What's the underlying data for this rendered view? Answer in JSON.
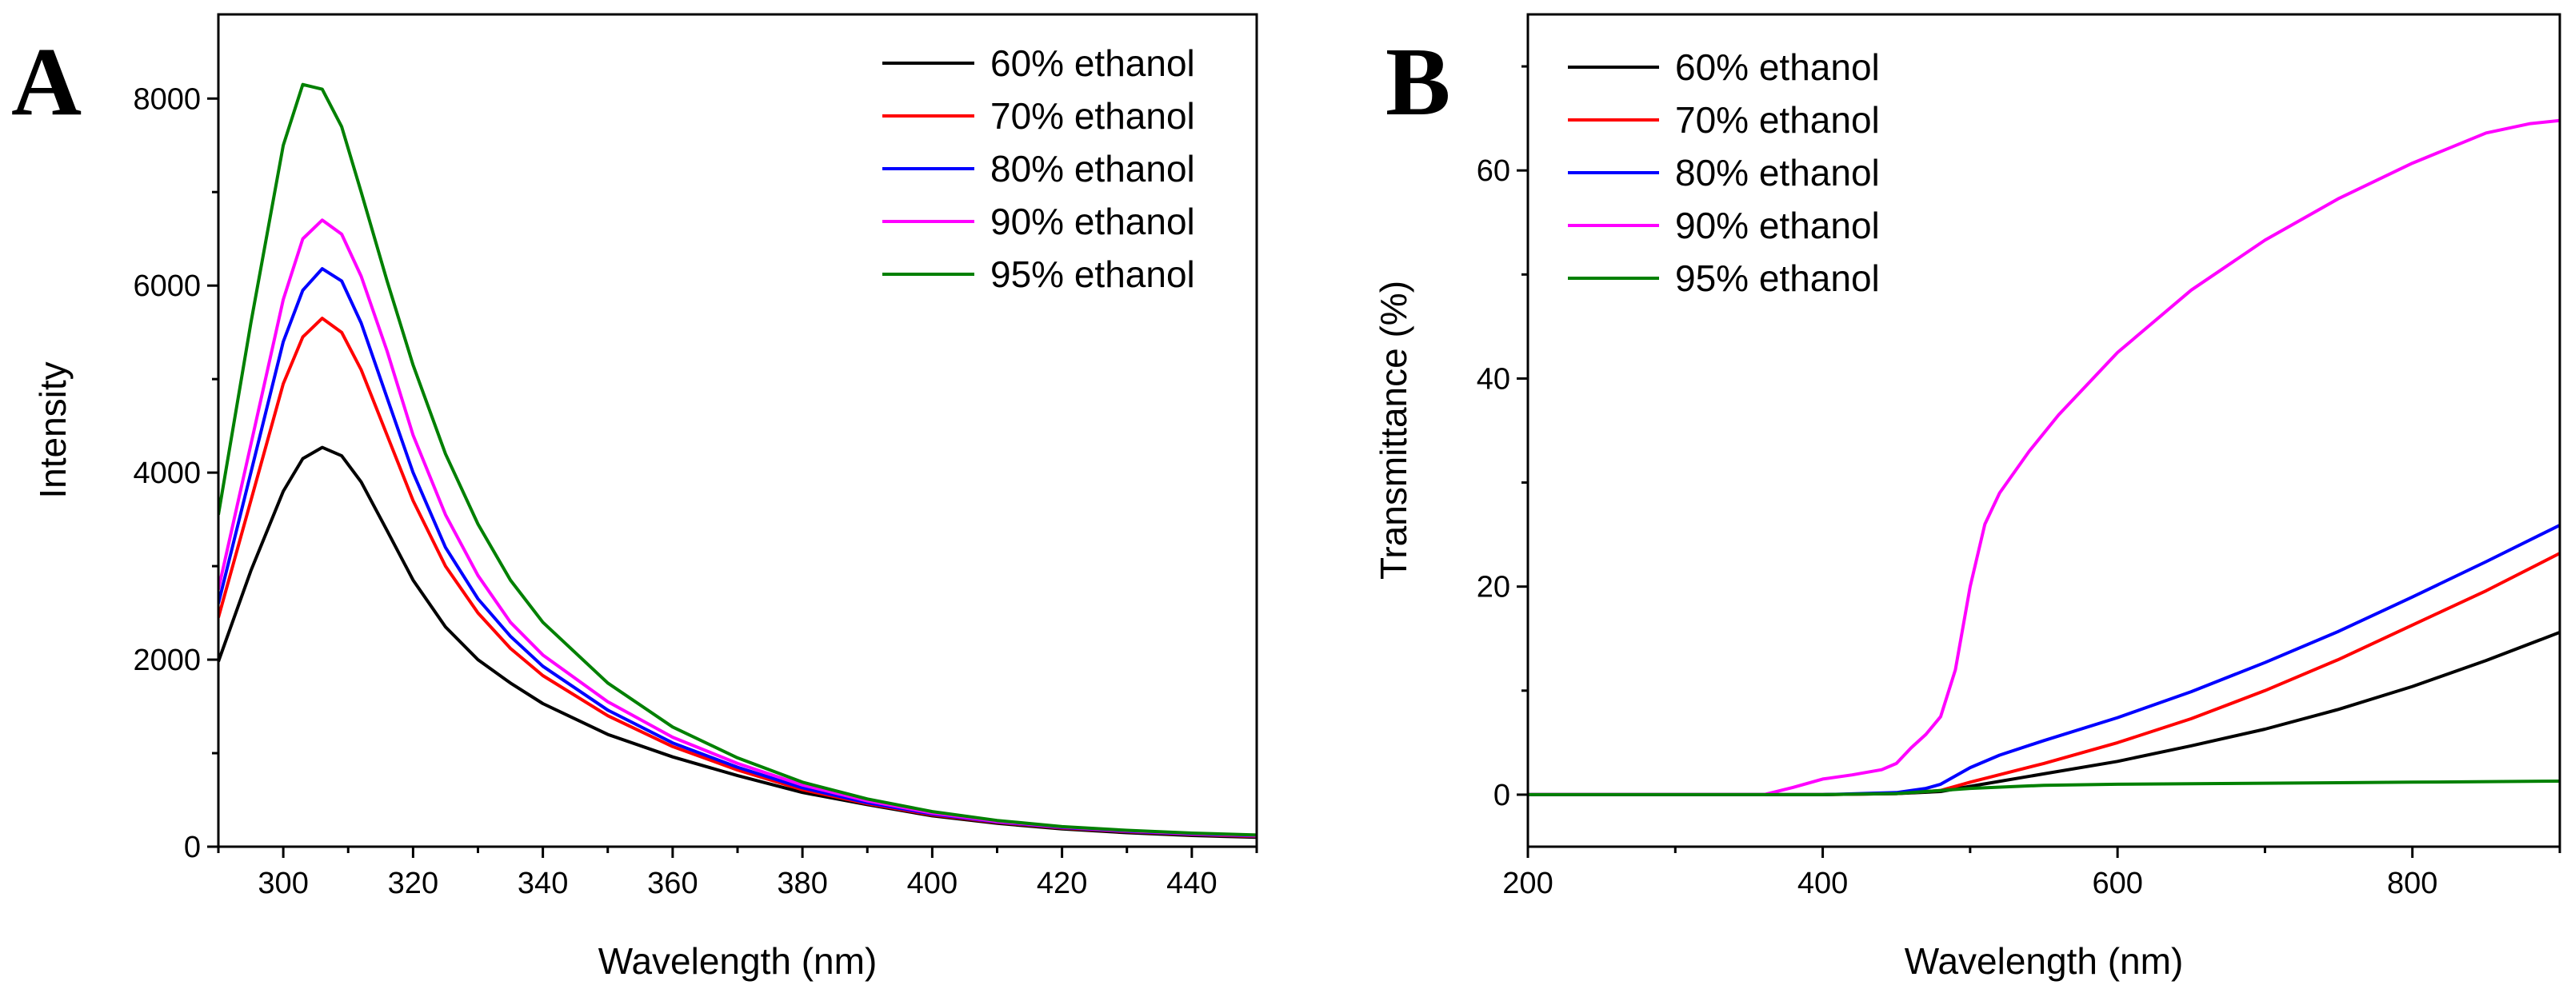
{
  "chart_data": [
    {
      "panel_label": "A",
      "type": "line",
      "title": "",
      "xlabel": "Wavelength (nm)",
      "ylabel": "Intensity",
      "xlim": [
        290,
        450
      ],
      "ylim": [
        0,
        8900
      ],
      "xticks": [
        300,
        320,
        340,
        360,
        380,
        400,
        420,
        440
      ],
      "yticks": [
        0,
        2000,
        4000,
        6000,
        8000
      ],
      "grid": false,
      "legend": "top-right",
      "series": [
        {
          "name": "60% ethanol",
          "color": "#000000",
          "x": [
            290,
            295,
            300,
            303,
            306,
            309,
            312,
            316,
            320,
            325,
            330,
            335,
            340,
            350,
            360,
            370,
            380,
            390,
            400,
            410,
            420,
            430,
            440,
            450
          ],
          "y": [
            1980,
            2950,
            3800,
            4150,
            4270,
            4180,
            3900,
            3380,
            2850,
            2350,
            2000,
            1750,
            1530,
            1200,
            960,
            760,
            580,
            450,
            330,
            250,
            190,
            150,
            120,
            100
          ]
        },
        {
          "name": "70% ethanol",
          "color": "#ff0000",
          "x": [
            290,
            295,
            300,
            303,
            306,
            309,
            312,
            316,
            320,
            325,
            330,
            335,
            340,
            350,
            360,
            370,
            380,
            390,
            400,
            410,
            420,
            430,
            440,
            450
          ],
          "y": [
            2450,
            3700,
            4950,
            5450,
            5650,
            5500,
            5100,
            4400,
            3700,
            3000,
            2500,
            2120,
            1830,
            1400,
            1070,
            820,
            610,
            460,
            340,
            260,
            200,
            160,
            130,
            110
          ]
        },
        {
          "name": "80% ethanol",
          "color": "#0000ff",
          "x": [
            290,
            295,
            300,
            303,
            306,
            309,
            312,
            316,
            320,
            325,
            330,
            335,
            340,
            350,
            360,
            370,
            380,
            390,
            400,
            410,
            420,
            430,
            440,
            450
          ],
          "y": [
            2600,
            4000,
            5400,
            5950,
            6180,
            6050,
            5600,
            4800,
            4000,
            3200,
            2650,
            2250,
            1930,
            1460,
            1110,
            850,
            630,
            470,
            350,
            265,
            205,
            165,
            135,
            115
          ]
        },
        {
          "name": "90% ethanol",
          "color": "#ff00ff",
          "x": [
            290,
            295,
            300,
            303,
            306,
            309,
            312,
            316,
            320,
            325,
            330,
            335,
            340,
            350,
            360,
            370,
            380,
            390,
            400,
            410,
            420,
            430,
            440,
            450
          ],
          "y": [
            2750,
            4300,
            5850,
            6500,
            6700,
            6550,
            6100,
            5300,
            4400,
            3550,
            2900,
            2400,
            2050,
            1550,
            1170,
            890,
            660,
            490,
            360,
            270,
            210,
            170,
            140,
            120
          ]
        },
        {
          "name": "95% ethanol",
          "color": "#008000",
          "x": [
            290,
            295,
            300,
            303,
            306,
            309,
            312,
            316,
            320,
            325,
            330,
            335,
            340,
            350,
            360,
            370,
            380,
            390,
            400,
            410,
            420,
            430,
            440,
            450
          ],
          "y": [
            3550,
            5600,
            7500,
            8150,
            8100,
            7700,
            7000,
            6050,
            5150,
            4200,
            3450,
            2850,
            2400,
            1750,
            1280,
            950,
            690,
            510,
            375,
            280,
            215,
            175,
            145,
            125
          ]
        }
      ]
    },
    {
      "panel_label": "B",
      "type": "line",
      "title": "",
      "xlabel": "Wavelength (nm)",
      "ylabel": "Transmittance (%)",
      "xlim": [
        200,
        900
      ],
      "ylim": [
        -5,
        75
      ],
      "xticks": [
        200,
        400,
        600,
        800
      ],
      "yticks": [
        0,
        20,
        40,
        60
      ],
      "grid": false,
      "legend": "top-left",
      "series": [
        {
          "name": "60% ethanol",
          "color": "#000000",
          "x": [
            200,
            300,
            400,
            450,
            480,
            500,
            550,
            600,
            650,
            700,
            750,
            800,
            850,
            900
          ],
          "y": [
            0,
            0,
            0,
            0.1,
            0.3,
            0.8,
            2.0,
            3.2,
            4.7,
            6.3,
            8.2,
            10.4,
            12.9,
            15.6
          ]
        },
        {
          "name": "70% ethanol",
          "color": "#ff0000",
          "x": [
            200,
            300,
            400,
            450,
            480,
            500,
            550,
            600,
            650,
            700,
            750,
            800,
            850,
            900
          ],
          "y": [
            0,
            0,
            0,
            0.1,
            0.4,
            1.2,
            3.0,
            5.0,
            7.3,
            10.0,
            13.0,
            16.3,
            19.6,
            23.2
          ]
        },
        {
          "name": "80% ethanol",
          "color": "#0000ff",
          "x": [
            200,
            300,
            400,
            450,
            470,
            480,
            500,
            520,
            550,
            600,
            650,
            700,
            750,
            800,
            850,
            900
          ],
          "y": [
            0,
            0,
            0,
            0.2,
            0.6,
            1.0,
            2.6,
            3.8,
            5.2,
            7.4,
            9.9,
            12.7,
            15.7,
            19.0,
            22.4,
            25.9
          ]
        },
        {
          "name": "90% ethanol",
          "color": "#ff00ff",
          "x": [
            200,
            300,
            360,
            380,
            400,
            420,
            440,
            450,
            460,
            470,
            480,
            490,
            500,
            510,
            520,
            540,
            560,
            600,
            650,
            700,
            750,
            800,
            850,
            880,
            900
          ],
          "y": [
            0,
            0,
            0,
            0.7,
            1.5,
            1.9,
            2.4,
            3.0,
            4.5,
            5.8,
            7.5,
            12.0,
            20.0,
            26.0,
            29.0,
            33.0,
            36.5,
            42.5,
            48.5,
            53.3,
            57.3,
            60.7,
            63.6,
            64.5,
            64.8
          ]
        },
        {
          "name": "95% ethanol",
          "color": "#008000",
          "x": [
            200,
            300,
            400,
            450,
            500,
            550,
            600,
            700,
            800,
            900
          ],
          "y": [
            0,
            0,
            0,
            0.1,
            0.6,
            0.9,
            1.0,
            1.1,
            1.2,
            1.3
          ]
        }
      ]
    }
  ]
}
